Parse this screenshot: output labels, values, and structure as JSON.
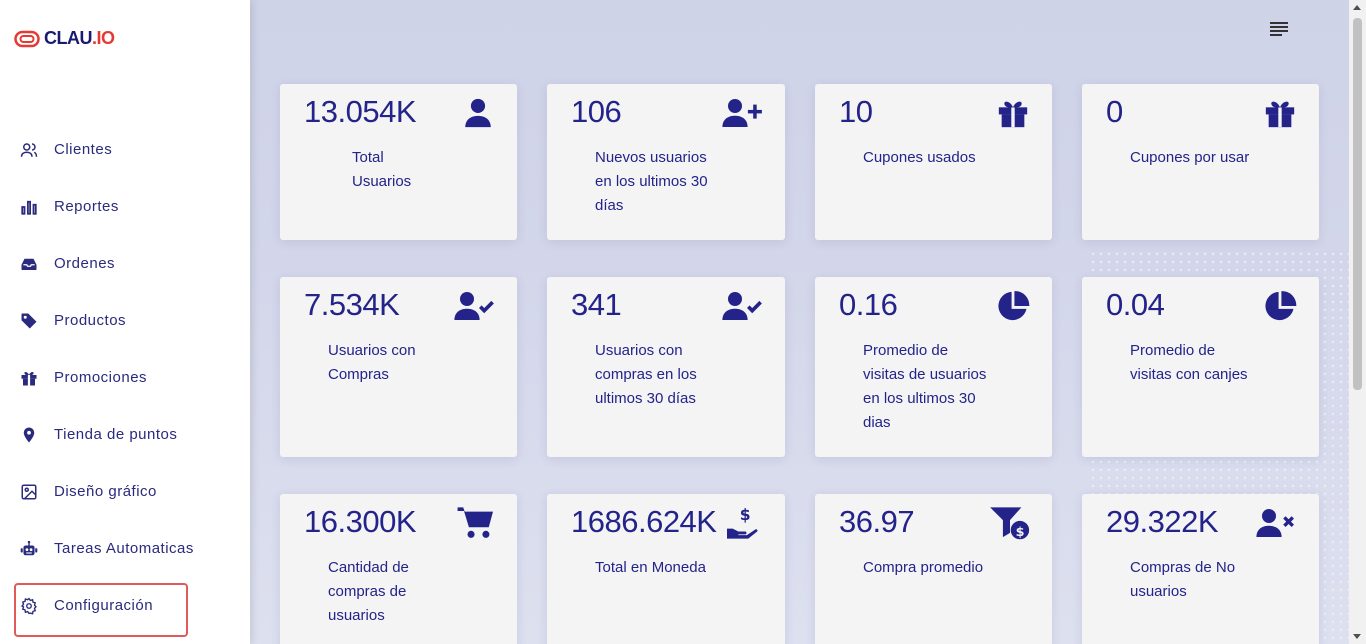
{
  "brand": {
    "name_main": "CLAU",
    "name_accent": ".IO"
  },
  "sidebar": {
    "items": [
      {
        "label": "Clientes",
        "icon": "users-icon"
      },
      {
        "label": "Reportes",
        "icon": "bar-chart-icon"
      },
      {
        "label": "Ordenes",
        "icon": "inbox-icon"
      },
      {
        "label": "Productos",
        "icon": "tag-icon"
      },
      {
        "label": "Promociones",
        "icon": "gift-icon"
      },
      {
        "label": "Tienda de puntos",
        "icon": "map-pin-icon"
      },
      {
        "label": "Diseño gráfico",
        "icon": "image-icon"
      },
      {
        "label": "Tareas Automaticas",
        "icon": "robot-icon"
      },
      {
        "label": "Configuración",
        "icon": "gear-icon",
        "active": true
      }
    ]
  },
  "colors": {
    "accent": "#23238a",
    "active_border": "#e05a5a",
    "brand_red": "#e53935"
  },
  "cards": [
    {
      "value": "13.054K",
      "label": "Total\nUsuarios",
      "icon": "user-icon"
    },
    {
      "value": "106",
      "label": "Nuevos usuarios\nen los ultimos 30\ndías",
      "icon": "user-plus-icon"
    },
    {
      "value": "10",
      "label": "Cupones usados",
      "icon": "gift-icon"
    },
    {
      "value": "0",
      "label": "Cupones por usar",
      "icon": "gift-icon"
    },
    {
      "value": "7.534K",
      "label": "Usuarios con\nCompras",
      "icon": "user-check-icon"
    },
    {
      "value": "341",
      "label": "Usuarios con\ncompras en los\nultimos 30 días",
      "icon": "user-check-icon"
    },
    {
      "value": "0.16",
      "label": "Promedio de\nvisitas de usuarios\nen los ultimos 30\ndias",
      "icon": "pie-chart-icon"
    },
    {
      "value": "0.04",
      "label": "Promedio de\nvisitas con canjes",
      "icon": "pie-chart-icon"
    },
    {
      "value": "16.300K",
      "label": "Cantidad de\ncompras de\nusuarios",
      "icon": "cart-icon"
    },
    {
      "value": "1686.624K",
      "label": "Total en Moneda",
      "icon": "hand-dollar-icon"
    },
    {
      "value": "36.97",
      "label": "Compra promedio",
      "icon": "funnel-dollar-icon"
    },
    {
      "value": "29.322K",
      "label": "Compras de No\nusuarios",
      "icon": "user-x-icon"
    }
  ]
}
